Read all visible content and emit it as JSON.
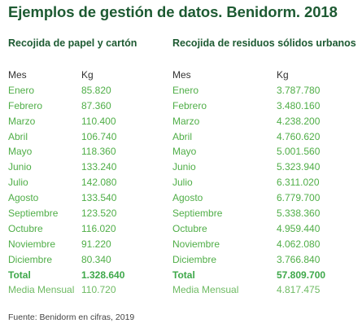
{
  "title": "Ejemplos de gestión de datos. Benidorm. 2018",
  "left": {
    "heading": "Recojida de papel y cartón",
    "col_month": "Mes",
    "col_kg": "Kg",
    "rows": [
      {
        "month": "Enero",
        "kg": "85.820"
      },
      {
        "month": "Febrero",
        "kg": "87.360"
      },
      {
        "month": "Marzo",
        "kg": "110.400"
      },
      {
        "month": "Abril",
        "kg": "106.740"
      },
      {
        "month": "Mayo",
        "kg": "118.360"
      },
      {
        "month": "Junio",
        "kg": "133.240"
      },
      {
        "month": "Julio",
        "kg": "142.080"
      },
      {
        "month": "Agosto",
        "kg": "133.540"
      },
      {
        "month": "Septiembre",
        "kg": "123.520"
      },
      {
        "month": "Octubre",
        "kg": "116.020"
      },
      {
        "month": "Noviembre",
        "kg": "91.220"
      },
      {
        "month": "Diciembre",
        "kg": "80.340"
      }
    ],
    "total_label": "Total",
    "total_value": "1.328.640",
    "avg_label": "Media Mensual",
    "avg_value": "110.720"
  },
  "right": {
    "heading": "Recojida de residuos sólidos urbanos",
    "col_month": "Mes",
    "col_kg": "Kg",
    "rows": [
      {
        "month": "Enero",
        "kg": "3.787.780"
      },
      {
        "month": "Febrero",
        "kg": "3.480.160"
      },
      {
        "month": "Marzo",
        "kg": "4.238.200"
      },
      {
        "month": "Abril",
        "kg": "4.760.620"
      },
      {
        "month": "Mayo",
        "kg": "5.001.560"
      },
      {
        "month": "Junio",
        "kg": "5.323.940"
      },
      {
        "month": "Julio",
        "kg": "6.311.020"
      },
      {
        "month": "Agosto",
        "kg": "6.779.700"
      },
      {
        "month": "Septiembre",
        "kg": "5.338.360"
      },
      {
        "month": "Octubre",
        "kg": "4.959.440"
      },
      {
        "month": "Noviembre",
        "kg": "4.062.080"
      },
      {
        "month": "Diciembre",
        "kg": "3.766.840"
      }
    ],
    "total_label": "Total",
    "total_value": "57.809.700",
    "avg_label": "Media Mensual",
    "avg_value": "4.817.475"
  },
  "footer": "Fuente: Benidorm en cifras, 2019"
}
